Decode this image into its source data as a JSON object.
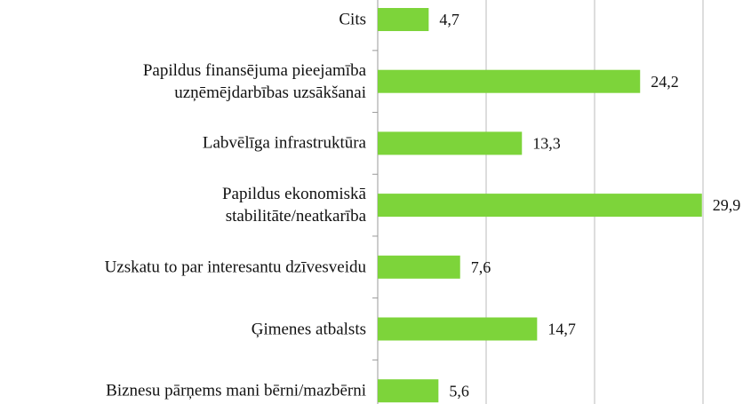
{
  "chart_data": {
    "type": "bar",
    "orientation": "horizontal",
    "categories": [
      "Cits",
      "Papildus finansējuma pieejamība\nuzņēmējdarbības uzsākšanai",
      "Labvēlīga infrastruktūra",
      "Papildus ekonomiskā\nstabilitāte/neatkarība",
      "Uzskatu to par interesantu dzīvesveidu",
      "Ģimenes atbalsts",
      "Biznesu pārņems mani bērni/mazbērni"
    ],
    "values": [
      4.7,
      24.2,
      13.3,
      29.9,
      7.6,
      14.7,
      5.6
    ],
    "value_labels": [
      "4,7",
      "24,2",
      "13,3",
      "29,9",
      "7,6",
      "14,7",
      "5,6"
    ],
    "color": "#7dd43a",
    "xlim": [
      0,
      30
    ],
    "xticks": [
      0,
      10,
      20,
      30
    ],
    "grid": true
  }
}
